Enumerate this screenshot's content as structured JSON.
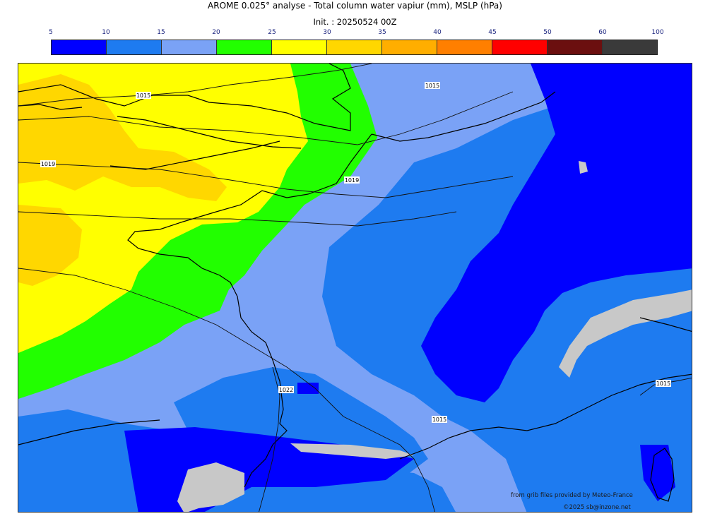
{
  "header": {
    "title": "AROME 0.025° analyse - Total column water vapiur (mm), MSLP (hPa)",
    "init": "Init. : 20250524 00Z"
  },
  "colorbar": {
    "ticks": [
      "5",
      "10",
      "15",
      "20",
      "25",
      "30",
      "35",
      "40",
      "45",
      "50",
      "60",
      "100"
    ],
    "colors": [
      "#0000ff",
      "#1e7bf0",
      "#7aa2f6",
      "#22ff00",
      "#ffff00",
      "#ffd700",
      "#ffae00",
      "#ff7f00",
      "#ff0000",
      "#6b0f0f",
      "#3a3a3a"
    ]
  },
  "map": {
    "isobar_labels": [
      "1015",
      "1015",
      "1019",
      "1019",
      "1022",
      "1015",
      "1015"
    ],
    "colors": {
      "land_outline": "#000000",
      "isobar": "#111111",
      "fill_5_10": "#0000ff",
      "fill_10_15": "#1e7bf0",
      "fill_15_20": "#7aa2f6",
      "fill_20_25": "#22ff00",
      "fill_25_30": "#ffff00",
      "fill_30_35": "#ffd700",
      "fill_above_60": "#c8c8c8"
    }
  },
  "credits": {
    "source": "from grib files provided by Meteo-France",
    "copyright": "©2025 sb@inzone.net"
  }
}
